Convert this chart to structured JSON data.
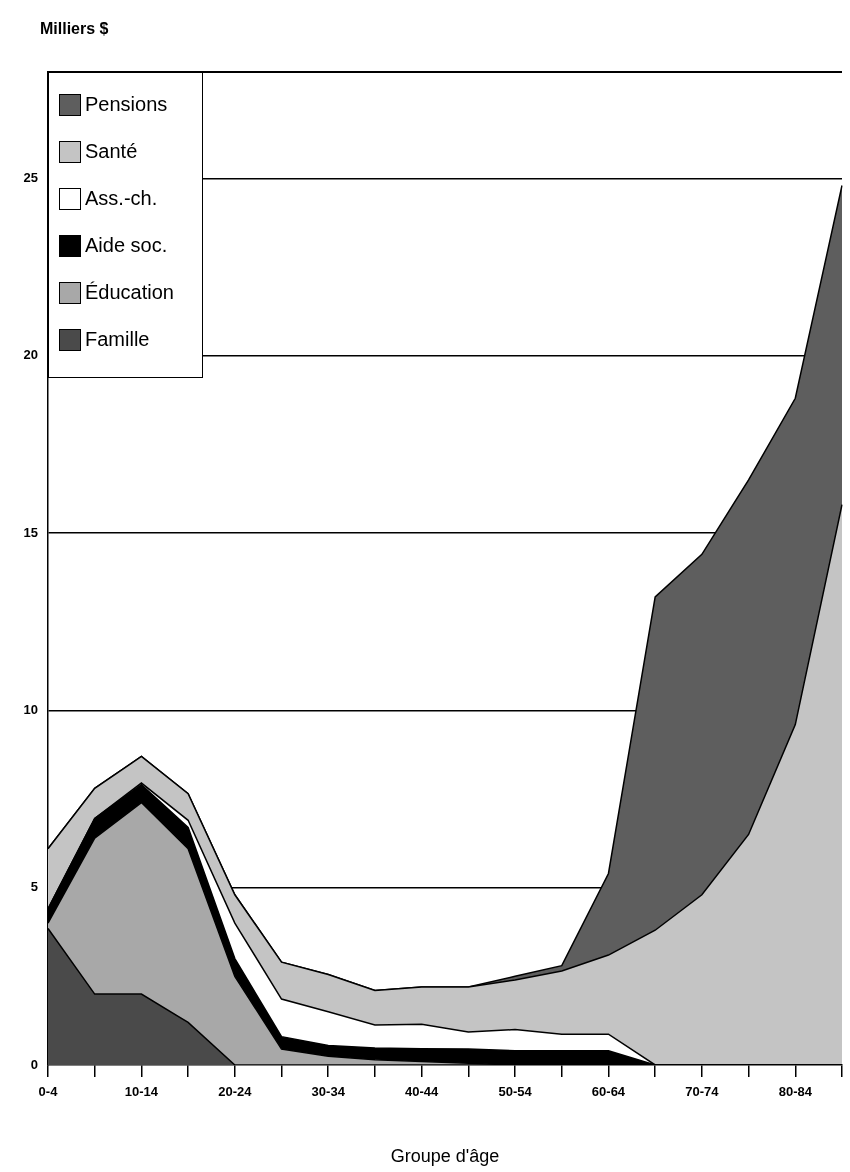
{
  "chart_data": {
    "type": "area",
    "ylabel": "Milliers $",
    "xlabel": "Groupe d'âge",
    "categories": [
      "0-4",
      null,
      "10-14",
      null,
      "20-24",
      null,
      "30-34",
      null,
      "40-44",
      null,
      "50-54",
      null,
      "60-64",
      null,
      "70-74",
      null,
      "80-84",
      null
    ],
    "stacked": true,
    "ylim": [
      0,
      28
    ],
    "yticks": [
      0,
      5,
      10,
      15,
      20,
      25
    ],
    "grid": "y",
    "legend": "top left",
    "series": [
      {
        "name": "Famille",
        "color": "#4a4a4a",
        "values": [
          3.85,
          2.0,
          2.0,
          1.2,
          0,
          0,
          0,
          0,
          0,
          0,
          0,
          0,
          0,
          0,
          0,
          0,
          0,
          0
        ]
      },
      {
        "name": "Éducation",
        "color": "#a8a8a8",
        "values": [
          0.15,
          4.4,
          5.4,
          4.9,
          2.5,
          0.45,
          0.25,
          0.15,
          0.1,
          0.05,
          0,
          0,
          0,
          0,
          0,
          0,
          0,
          0
        ]
      },
      {
        "name": "Aide soc.",
        "color": "#000000",
        "values": [
          0.4,
          0.55,
          0.5,
          0.6,
          0.5,
          0.35,
          0.3,
          0.33,
          0.36,
          0.4,
          0.4,
          0.4,
          0.4,
          0,
          0,
          0,
          0,
          0
        ]
      },
      {
        "name": "Ass.-ch.",
        "color": "#ffffff",
        "values": [
          0,
          0,
          0.05,
          0.2,
          1.0,
          1.06,
          0.95,
          0.65,
          0.69,
          0.48,
          0.6,
          0.47,
          0.47,
          0,
          0,
          0,
          0,
          0
        ]
      },
      {
        "name": "Santé",
        "color": "#c4c4c4",
        "values": [
          1.7,
          0.85,
          0.75,
          0.75,
          0.8,
          1.04,
          1.05,
          0.97,
          1.05,
          1.27,
          1.4,
          1.78,
          2.23,
          3.8,
          4.8,
          6.5,
          9.6,
          15.8
        ]
      },
      {
        "name": "Pensions",
        "color": "#5e5e5e",
        "values": [
          0,
          0,
          0,
          0,
          0,
          0,
          0,
          0,
          0,
          0,
          0.1,
          0.15,
          2.3,
          9.4,
          9.6,
          10.0,
          9.2,
          9.0
        ]
      }
    ]
  }
}
